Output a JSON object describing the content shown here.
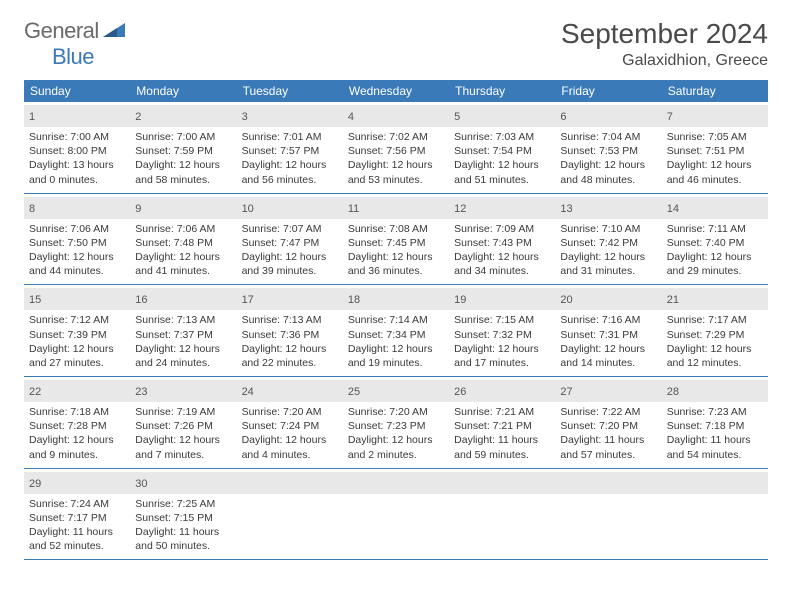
{
  "logo": {
    "textA": "General",
    "textB": "Blue"
  },
  "title": "September 2024",
  "location": "Galaxidhion, Greece",
  "colors": {
    "header_bg": "#3a7ab8",
    "daynum_bg": "#e8e8e8",
    "text": "#3a3a3a",
    "rule": "#3a7ab8",
    "background": "#ffffff"
  },
  "typography": {
    "title_fontsize": 28,
    "location_fontsize": 16,
    "header_fontsize": 12,
    "daynum_fontsize": 11,
    "info_fontsize": 10.5
  },
  "dayHeaders": [
    "Sunday",
    "Monday",
    "Tuesday",
    "Wednesday",
    "Thursday",
    "Friday",
    "Saturday"
  ],
  "weeks": [
    [
      {
        "n": "1",
        "sr": "7:00 AM",
        "ss": "8:00 PM",
        "dl": "13 hours and 0 minutes."
      },
      {
        "n": "2",
        "sr": "7:00 AM",
        "ss": "7:59 PM",
        "dl": "12 hours and 58 minutes."
      },
      {
        "n": "3",
        "sr": "7:01 AM",
        "ss": "7:57 PM",
        "dl": "12 hours and 56 minutes."
      },
      {
        "n": "4",
        "sr": "7:02 AM",
        "ss": "7:56 PM",
        "dl": "12 hours and 53 minutes."
      },
      {
        "n": "5",
        "sr": "7:03 AM",
        "ss": "7:54 PM",
        "dl": "12 hours and 51 minutes."
      },
      {
        "n": "6",
        "sr": "7:04 AM",
        "ss": "7:53 PM",
        "dl": "12 hours and 48 minutes."
      },
      {
        "n": "7",
        "sr": "7:05 AM",
        "ss": "7:51 PM",
        "dl": "12 hours and 46 minutes."
      }
    ],
    [
      {
        "n": "8",
        "sr": "7:06 AM",
        "ss": "7:50 PM",
        "dl": "12 hours and 44 minutes."
      },
      {
        "n": "9",
        "sr": "7:06 AM",
        "ss": "7:48 PM",
        "dl": "12 hours and 41 minutes."
      },
      {
        "n": "10",
        "sr": "7:07 AM",
        "ss": "7:47 PM",
        "dl": "12 hours and 39 minutes."
      },
      {
        "n": "11",
        "sr": "7:08 AM",
        "ss": "7:45 PM",
        "dl": "12 hours and 36 minutes."
      },
      {
        "n": "12",
        "sr": "7:09 AM",
        "ss": "7:43 PM",
        "dl": "12 hours and 34 minutes."
      },
      {
        "n": "13",
        "sr": "7:10 AM",
        "ss": "7:42 PM",
        "dl": "12 hours and 31 minutes."
      },
      {
        "n": "14",
        "sr": "7:11 AM",
        "ss": "7:40 PM",
        "dl": "12 hours and 29 minutes."
      }
    ],
    [
      {
        "n": "15",
        "sr": "7:12 AM",
        "ss": "7:39 PM",
        "dl": "12 hours and 27 minutes."
      },
      {
        "n": "16",
        "sr": "7:13 AM",
        "ss": "7:37 PM",
        "dl": "12 hours and 24 minutes."
      },
      {
        "n": "17",
        "sr": "7:13 AM",
        "ss": "7:36 PM",
        "dl": "12 hours and 22 minutes."
      },
      {
        "n": "18",
        "sr": "7:14 AM",
        "ss": "7:34 PM",
        "dl": "12 hours and 19 minutes."
      },
      {
        "n": "19",
        "sr": "7:15 AM",
        "ss": "7:32 PM",
        "dl": "12 hours and 17 minutes."
      },
      {
        "n": "20",
        "sr": "7:16 AM",
        "ss": "7:31 PM",
        "dl": "12 hours and 14 minutes."
      },
      {
        "n": "21",
        "sr": "7:17 AM",
        "ss": "7:29 PM",
        "dl": "12 hours and 12 minutes."
      }
    ],
    [
      {
        "n": "22",
        "sr": "7:18 AM",
        "ss": "7:28 PM",
        "dl": "12 hours and 9 minutes."
      },
      {
        "n": "23",
        "sr": "7:19 AM",
        "ss": "7:26 PM",
        "dl": "12 hours and 7 minutes."
      },
      {
        "n": "24",
        "sr": "7:20 AM",
        "ss": "7:24 PM",
        "dl": "12 hours and 4 minutes."
      },
      {
        "n": "25",
        "sr": "7:20 AM",
        "ss": "7:23 PM",
        "dl": "12 hours and 2 minutes."
      },
      {
        "n": "26",
        "sr": "7:21 AM",
        "ss": "7:21 PM",
        "dl": "11 hours and 59 minutes."
      },
      {
        "n": "27",
        "sr": "7:22 AM",
        "ss": "7:20 PM",
        "dl": "11 hours and 57 minutes."
      },
      {
        "n": "28",
        "sr": "7:23 AM",
        "ss": "7:18 PM",
        "dl": "11 hours and 54 minutes."
      }
    ],
    [
      {
        "n": "29",
        "sr": "7:24 AM",
        "ss": "7:17 PM",
        "dl": "11 hours and 52 minutes."
      },
      {
        "n": "30",
        "sr": "7:25 AM",
        "ss": "7:15 PM",
        "dl": "11 hours and 50 minutes."
      },
      null,
      null,
      null,
      null,
      null
    ]
  ],
  "labels": {
    "sunrise": "Sunrise:",
    "sunset": "Sunset:",
    "daylight": "Daylight:"
  }
}
